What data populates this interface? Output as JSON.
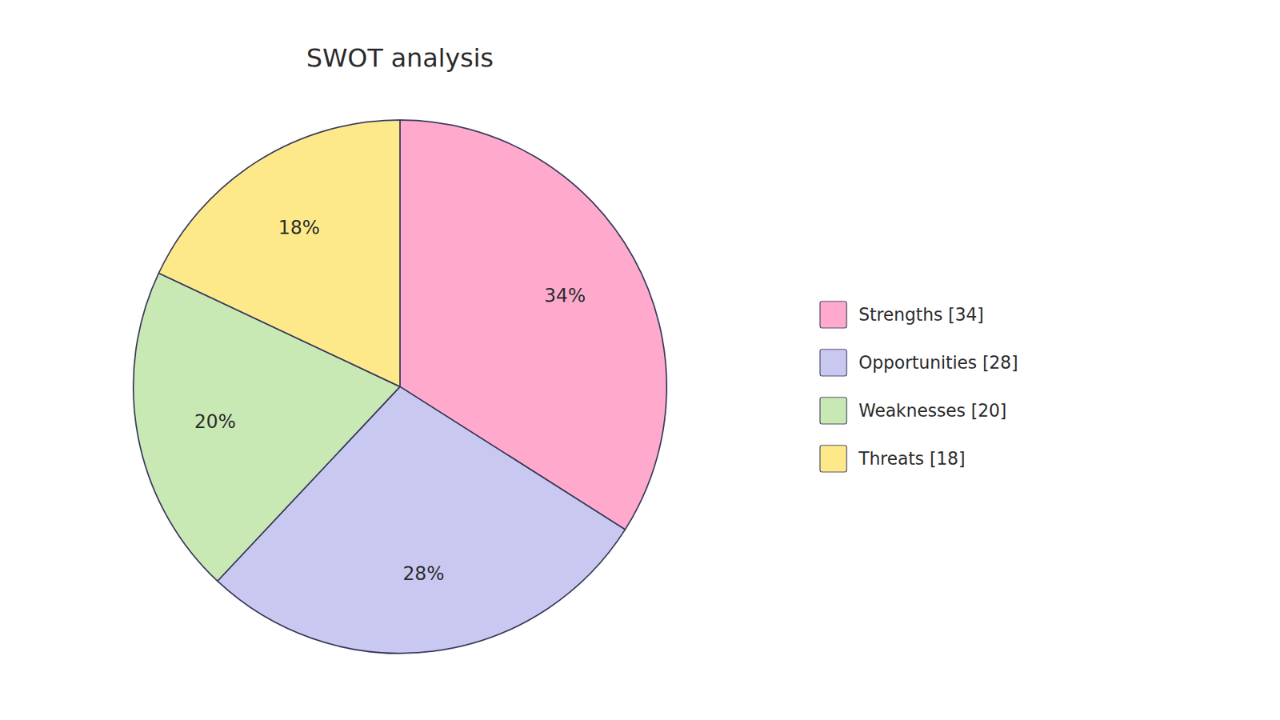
{
  "chart_data": {
    "type": "pie",
    "title": "SWOT analysis",
    "categories": [
      "Strengths [34]",
      "Opportunities [28]",
      "Weaknesses [20]",
      "Threats [18]"
    ],
    "values": [
      34,
      28,
      20,
      18
    ],
    "value_labels": [
      "34%",
      "28%",
      "20%",
      "18%"
    ],
    "colors": [
      "#ffaacc",
      "#c8c8f0",
      "#c8e8b4",
      "#fde98a"
    ],
    "data_labels": true,
    "legend": "right"
  }
}
